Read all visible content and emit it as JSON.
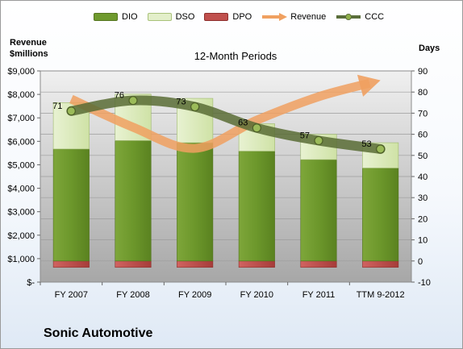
{
  "chart_data": {
    "type": "bar",
    "title": "12-Month Periods",
    "company": "Sonic Automotive",
    "categories": [
      "FY 2007",
      "FY 2008",
      "FY 2009",
      "FY 2010",
      "FY 2011",
      "TTM 9-2012"
    ],
    "left_axis": {
      "label_line1": "Revenue",
      "label_line2": "$millions",
      "ylim": [
        0,
        9000
      ],
      "ticks": [
        "$-",
        "$1,000",
        "$2,000",
        "$3,000",
        "$4,000",
        "$5,000",
        "$6,000",
        "$7,000",
        "$8,000",
        "$9,000"
      ]
    },
    "right_axis": {
      "label": "Days",
      "ylim": [
        -10,
        90
      ],
      "ticks": [
        "-10",
        "0",
        "10",
        "20",
        "30",
        "40",
        "50",
        "60",
        "70",
        "80",
        "90"
      ]
    },
    "series": [
      {
        "name": "DIO",
        "type": "stacked-bar",
        "axis": "right",
        "values": [
          53,
          57,
          56,
          52,
          48,
          44
        ],
        "color": "#6f9a2e"
      },
      {
        "name": "DSO",
        "type": "stacked-bar",
        "axis": "right",
        "values": [
          22,
          22,
          21,
          13,
          12,
          12
        ],
        "color": "#d7e8b4"
      },
      {
        "name": "DPO",
        "type": "negative-bar",
        "axis": "right",
        "values": [
          -3,
          -3,
          -3,
          -3,
          -3,
          -3
        ],
        "color": "#c0504d"
      },
      {
        "name": "Revenue",
        "type": "arrow-line",
        "axis": "left",
        "values": [
          7800,
          6600,
          5700,
          6900,
          7900,
          8600
        ],
        "color": "#f0a060"
      },
      {
        "name": "CCC",
        "type": "line",
        "axis": "right",
        "values": [
          71,
          76,
          73,
          63,
          57,
          53
        ],
        "color": "#5a6e3a"
      }
    ],
    "data_labels": [
      "71",
      "76",
      "73",
      "63",
      "57",
      "53"
    ],
    "legend_position": "top"
  }
}
